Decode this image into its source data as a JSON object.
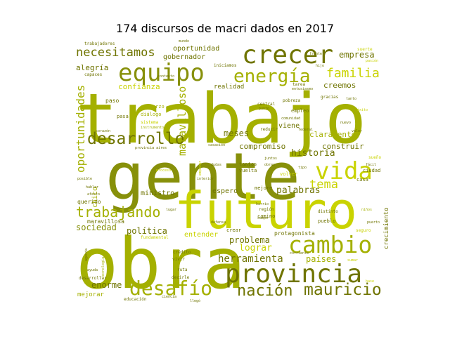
{
  "chart_data": {
    "type": "wordcloud",
    "title": "174 discursos de macri dados en 2017",
    "palette": [
      "#c9d300",
      "#a4b000",
      "#87900a",
      "#6f7400"
    ],
    "words": [
      {
        "text": "trabajo",
        "weight": 100,
        "color": "#a4b000"
      },
      {
        "text": "gente",
        "weight": 95,
        "color": "#87900a"
      },
      {
        "text": "obra",
        "weight": 92,
        "color": "#a4b000"
      },
      {
        "text": "futuro",
        "weight": 80,
        "color": "#c9d300"
      },
      {
        "text": "provincia",
        "weight": 40,
        "color": "#6f7400"
      },
      {
        "text": "crecer",
        "weight": 36,
        "color": "#6f7400"
      },
      {
        "text": "equipo",
        "weight": 34,
        "color": "#87900a"
      },
      {
        "text": "vida",
        "weight": 34,
        "color": "#c9d300"
      },
      {
        "text": "cambio",
        "weight": 33,
        "color": "#a4b000"
      },
      {
        "text": "desafío",
        "weight": 28,
        "color": "#a4b000"
      },
      {
        "text": "energía",
        "weight": 26,
        "color": "#a4b000"
      },
      {
        "text": "desarrollo",
        "weight": 24,
        "color": "#6f7400"
      },
      {
        "text": "mauricio",
        "weight": 23,
        "color": "#6f7400"
      },
      {
        "text": "nación",
        "weight": 22,
        "color": "#6f7400"
      },
      {
        "text": "trabajando",
        "weight": 20,
        "color": "#a4b000"
      },
      {
        "text": "familia",
        "weight": 18,
        "color": "#c9d300"
      },
      {
        "text": "necesitamos",
        "weight": 17,
        "color": "#6f7400"
      },
      {
        "text": "oportunidades",
        "weight": 16,
        "color": "#a4b000"
      },
      {
        "text": "tema",
        "weight": 17,
        "color": "#c9d300"
      },
      {
        "text": "maravilloso",
        "weight": 15,
        "color": "#a4b000"
      },
      {
        "text": "herramienta",
        "weight": 14,
        "color": "#6f7400"
      },
      {
        "text": "palabras",
        "weight": 13,
        "color": "#6f7400"
      },
      {
        "text": "historia",
        "weight": 13,
        "color": "#6f7400"
      },
      {
        "text": "lograr",
        "weight": 13,
        "color": "#c9d300"
      },
      {
        "text": "problema",
        "weight": 12,
        "color": "#6f7400"
      },
      {
        "text": "política",
        "weight": 12,
        "color": "#6f7400"
      },
      {
        "text": "sociedad",
        "weight": 12,
        "color": "#87900a"
      },
      {
        "text": "enorme",
        "weight": 12,
        "color": "#6f7400"
      },
      {
        "text": "empresa",
        "weight": 12,
        "color": "#6f7400"
      },
      {
        "text": "meses",
        "weight": 12,
        "color": "#6f7400"
      },
      {
        "text": "países",
        "weight": 12,
        "color": "#a4b000"
      },
      {
        "text": "creemos",
        "weight": 11,
        "color": "#6f7400"
      },
      {
        "text": "construir",
        "weight": 11,
        "color": "#6f7400"
      },
      {
        "text": "compromiso",
        "weight": 11,
        "color": "#6f7400"
      },
      {
        "text": "claramente",
        "weight": 11,
        "color": "#a4b000"
      },
      {
        "text": "confianza",
        "weight": 11,
        "color": "#c9d300"
      },
      {
        "text": "alegría",
        "weight": 11,
        "color": "#6f7400"
      },
      {
        "text": "oportunidad",
        "weight": 10,
        "color": "#6f7400"
      },
      {
        "text": "gobernador",
        "weight": 10,
        "color": "#6f7400"
      },
      {
        "text": "chico",
        "weight": 10,
        "color": "#a4b000"
      },
      {
        "text": "ministro",
        "weight": 10,
        "color": "#6f7400"
      },
      {
        "text": "espero",
        "weight": 10,
        "color": "#6f7400"
      },
      {
        "text": "entender",
        "weight": 10,
        "color": "#c9d300"
      },
      {
        "text": "realidad",
        "weight": 9,
        "color": "#6f7400"
      },
      {
        "text": "viene",
        "weight": 10,
        "color": "#6f7400"
      },
      {
        "text": "crecimiento",
        "weight": 9,
        "color": "#6f7400"
      },
      {
        "text": "mejorar",
        "weight": 9,
        "color": "#a4b000"
      },
      {
        "text": "maravillosa",
        "weight": 8,
        "color": "#6f7400"
      },
      {
        "text": "protagonista",
        "weight": 8,
        "color": "#6f7400"
      },
      {
        "text": "querido",
        "weight": 8,
        "color": "#6f7400"
      },
      {
        "text": "paso",
        "weight": 8,
        "color": "#6f7400"
      },
      {
        "text": "crear",
        "weight": 7,
        "color": "#6f7400"
      },
      {
        "text": "pueblo",
        "weight": 7,
        "color": "#6f7400"
      },
      {
        "text": "diálogo",
        "weight": 7,
        "color": "#a4b000"
      },
      {
        "text": "esfuerzo",
        "weight": 7,
        "color": "#a4b000"
      },
      {
        "text": "empleo",
        "weight": 7,
        "color": "#6f7400"
      },
      {
        "text": "ciudad",
        "weight": 7,
        "color": "#6f7400"
      },
      {
        "text": "casa",
        "weight": 7,
        "color": "#6f7400"
      },
      {
        "text": "mejore",
        "weight": 7,
        "color": "#6f7400"
      },
      {
        "text": "vuelta",
        "weight": 7,
        "color": "#6f7400"
      },
      {
        "text": "tantos",
        "weight": 7,
        "color": "#6f7400"
      },
      {
        "text": "volver",
        "weight": 7,
        "color": "#c9d300"
      },
      {
        "text": "camino",
        "weight": 7,
        "color": "#6f7400"
      },
      {
        "text": "región",
        "weight": 6,
        "color": "#6f7400"
      },
      {
        "text": "ruta",
        "weight": 6,
        "color": "#6f7400"
      },
      {
        "text": "vivir",
        "weight": 6,
        "color": "#6f7400"
      },
      {
        "text": "crédito",
        "weight": 6,
        "color": "#6f7400"
      },
      {
        "text": "decirle",
        "weight": 6,
        "color": "#6f7400"
      },
      {
        "text": "desarrollar",
        "weight": 6,
        "color": "#6f7400"
      },
      {
        "text": "educación",
        "weight": 6,
        "color": "#6f7400"
      },
      {
        "text": "fundamental",
        "weight": 6,
        "color": "#c9d300"
      },
      {
        "text": "agenda",
        "weight": 5,
        "color": "#6f7400"
      },
      {
        "text": "tarea",
        "weight": 6,
        "color": "#6f7400"
      },
      {
        "text": "central",
        "weight": 6,
        "color": "#6f7400"
      },
      {
        "text": "pobreza",
        "weight": 6,
        "color": "#6f7400"
      },
      {
        "text": "reducir",
        "weight": 6,
        "color": "#6f7400"
      },
      {
        "text": "gracias",
        "weight": 6,
        "color": "#6f7400"
      },
      {
        "text": "seguro",
        "weight": 6,
        "color": "#c9d300"
      },
      {
        "text": "suerte",
        "weight": 6,
        "color": "#c9d300"
      },
      {
        "text": "distinto",
        "weight": 6,
        "color": "#6f7400"
      },
      {
        "text": "sueño",
        "weight": 6,
        "color": "#c9d300"
      },
      {
        "text": "éxito",
        "weight": 5,
        "color": "#c9d300"
      },
      {
        "text": "capaces",
        "weight": 6,
        "color": "#6f7400"
      },
      {
        "text": "trabajadores",
        "weight": 6,
        "color": "#6f7400"
      },
      {
        "text": "sistema",
        "weight": 6,
        "color": "#c9d300"
      },
      {
        "text": "iniciamos",
        "weight": 6,
        "color": "#6f7400"
      },
      {
        "text": "pasa",
        "weight": 7,
        "color": "#6f7400"
      },
      {
        "text": "contento",
        "weight": 5,
        "color": "#6f7400"
      },
      {
        "text": "instrumento",
        "weight": 5,
        "color": "#a4b000"
      },
      {
        "text": "provincia aires",
        "weight": 5,
        "color": "#6f7400"
      },
      {
        "text": "casación",
        "weight": 5,
        "color": "#6f7400"
      },
      {
        "text": "frente",
        "weight": 5,
        "color": "#6f7400"
      },
      {
        "text": "hijo",
        "weight": 5,
        "color": "#6f7400"
      },
      {
        "text": "entusiasmo",
        "weight": 5,
        "color": "#6f7400"
      },
      {
        "text": "mundo",
        "weight": 5,
        "color": "#6f7400"
      },
      {
        "text": "pasión",
        "weight": 5,
        "color": "#c9d300"
      },
      {
        "text": "comunidad",
        "weight": 5,
        "color": "#6f7400"
      },
      {
        "text": "corazón",
        "weight": 5,
        "color": "#6f7400"
      },
      {
        "text": "federal",
        "weight": 5,
        "color": "#6f7400"
      },
      {
        "text": "posible",
        "weight": 5,
        "color": "#6f7400"
      },
      {
        "text": "juntos",
        "weight": 5,
        "color": "#6f7400"
      },
      {
        "text": "sumar",
        "weight": 5,
        "color": "#c9d300"
      },
      {
        "text": "campo",
        "weight": 5,
        "color": "#6f7400"
      },
      {
        "text": "tanto",
        "weight": 5,
        "color": "#6f7400"
      },
      {
        "text": "niños",
        "weight": 5,
        "color": "#a4b000"
      },
      {
        "text": "puerto",
        "weight": 5,
        "color": "#6f7400"
      },
      {
        "text": "hablar",
        "weight": 5,
        "color": "#6f7400"
      },
      {
        "text": "afecto",
        "weight": 5,
        "color": "#6f7400"
      },
      {
        "text": "ayuda",
        "weight": 5,
        "color": "#6f7400"
      },
      {
        "text": "proceso",
        "weight": 5,
        "color": "#c9d300"
      },
      {
        "text": "empezar",
        "weight": 5,
        "color": "#c9d300"
      },
      {
        "text": "defensa",
        "weight": 5,
        "color": "#6f7400"
      },
      {
        "text": "corriente",
        "weight": 5,
        "color": "#6f7400"
      },
      {
        "text": "nuevo",
        "weight": 5,
        "color": "#6f7400"
      },
      {
        "text": "valor",
        "weight": 5,
        "color": "#6f7400"
      },
      {
        "text": "lugar",
        "weight": 5,
        "color": "#6f7400"
      },
      {
        "text": "tecnología",
        "weight": 5,
        "color": "#a4b000"
      },
      {
        "text": "dudas",
        "weight": 5,
        "color": "#6f7400"
      },
      {
        "text": "interior",
        "weight": 5,
        "color": "#6f7400"
      },
      {
        "text": "ciencia",
        "weight": 5,
        "color": "#6f7400"
      },
      {
        "text": "barrio",
        "weight": 5,
        "color": "#6f7400"
      },
      {
        "text": "obras",
        "weight": 5,
        "color": "#6f7400"
      },
      {
        "text": "base",
        "weight": 5,
        "color": "#c9d300"
      },
      {
        "text": "tipo",
        "weight": 5,
        "color": "#6f7400"
      },
      {
        "text": "fácil",
        "weight": 5,
        "color": "#6f7400"
      },
      {
        "text": "punto",
        "weight": 5,
        "color": "#6f7400"
      },
      {
        "text": "llegó",
        "weight": 5,
        "color": "#6f7400"
      }
    ]
  }
}
